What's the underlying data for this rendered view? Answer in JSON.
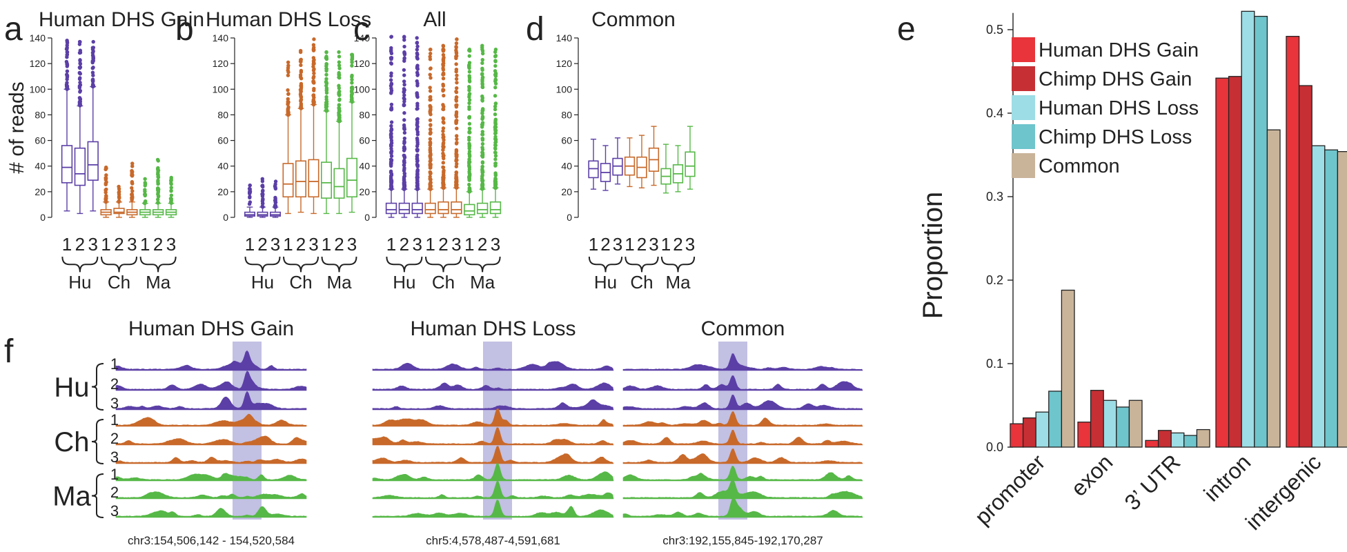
{
  "panels": {
    "a": {
      "letter": "a",
      "title": "Human DHS Gain"
    },
    "b": {
      "letter": "b",
      "title": "Human DHS Loss"
    },
    "c": {
      "letter": "c",
      "title": "All"
    },
    "d": {
      "letter": "d",
      "title": "Common"
    },
    "e": {
      "letter": "e"
    },
    "f": {
      "letter": "f"
    }
  },
  "colors": {
    "Hu": "#5b3fa6",
    "Ch": "#c8692a",
    "Ma": "#56b847",
    "highlight": "#8f8ccc"
  },
  "boxplot_common": {
    "ylabel": "# of reads",
    "yticks": [
      "0",
      "20",
      "40",
      "60",
      "80",
      "100",
      "120",
      "140"
    ],
    "replicates": [
      "1",
      "2",
      "3"
    ],
    "species": [
      "Hu",
      "Ch",
      "Ma"
    ]
  },
  "panel_f": {
    "species": [
      {
        "name": "Hu",
        "reps": [
          "1",
          "2",
          "3"
        ]
      },
      {
        "name": "Ch",
        "reps": [
          "1",
          "2",
          "3"
        ]
      },
      {
        "name": "Ma",
        "reps": [
          "1",
          "2",
          "3"
        ]
      }
    ],
    "regions": [
      {
        "title": "Human DHS Gain",
        "coords": "chr3:154,506,142 - 154,520,584"
      },
      {
        "title": "Human DHS Loss",
        "coords": "chr5:4,578,487-4,591,681"
      },
      {
        "title": "Common",
        "coords": "chr3:192,155,845-192,170,287"
      }
    ]
  },
  "chart_data": [
    {
      "type": "box",
      "panel": "a",
      "title": "Human DHS Gain",
      "ylabel": "# of reads",
      "ylim": [
        0,
        140
      ],
      "categories": [
        "1",
        "2",
        "3",
        "1",
        "2",
        "3",
        "1",
        "2",
        "3"
      ],
      "groups": [
        "Hu",
        "Ch",
        "Ma"
      ],
      "boxes": [
        {
          "group": "Hu",
          "rep": "1",
          "whisker_low": 5,
          "q1": 27,
          "median": 39,
          "q3": 56,
          "whisker_high": 100,
          "outlier_max": 138
        },
        {
          "group": "Hu",
          "rep": "2",
          "whisker_low": 3,
          "q1": 25,
          "median": 34,
          "q3": 54,
          "whisker_high": 87,
          "outlier_max": 137
        },
        {
          "group": "Hu",
          "rep": "3",
          "whisker_low": 5,
          "q1": 29,
          "median": 41,
          "q3": 59,
          "whisker_high": 102,
          "outlier_max": 137
        },
        {
          "group": "Ch",
          "rep": "1",
          "whisker_low": 0,
          "q1": 2,
          "median": 4,
          "q3": 6,
          "whisker_high": 12,
          "outlier_max": 39
        },
        {
          "group": "Ch",
          "rep": "2",
          "whisker_low": 0,
          "q1": 3,
          "median": 4,
          "q3": 7,
          "whisker_high": 12,
          "outlier_max": 24
        },
        {
          "group": "Ch",
          "rep": "3",
          "whisker_low": 0,
          "q1": 2,
          "median": 4,
          "q3": 6,
          "whisker_high": 12,
          "outlier_max": 42
        },
        {
          "group": "Ma",
          "rep": "1",
          "whisker_low": 0,
          "q1": 2,
          "median": 4,
          "q3": 6,
          "whisker_high": 11,
          "outlier_max": 30
        },
        {
          "group": "Ma",
          "rep": "2",
          "whisker_low": 0,
          "q1": 2,
          "median": 4,
          "q3": 6,
          "whisker_high": 11,
          "outlier_max": 45
        },
        {
          "group": "Ma",
          "rep": "3",
          "whisker_low": 0,
          "q1": 2,
          "median": 4,
          "q3": 6,
          "whisker_high": 11,
          "outlier_max": 31
        }
      ]
    },
    {
      "type": "box",
      "panel": "b",
      "title": "Human DHS Loss",
      "ylim": [
        0,
        140
      ],
      "categories": [
        "1",
        "2",
        "3",
        "1",
        "2",
        "3",
        "1",
        "2",
        "3"
      ],
      "groups": [
        "Hu",
        "Ch",
        "Ma"
      ],
      "boxes": [
        {
          "group": "Hu",
          "rep": "1",
          "whisker_low": 0,
          "q1": 1,
          "median": 2,
          "q3": 4,
          "whisker_high": 8,
          "outlier_max": 25
        },
        {
          "group": "Hu",
          "rep": "2",
          "whisker_low": 0,
          "q1": 1,
          "median": 2,
          "q3": 4,
          "whisker_high": 8,
          "outlier_max": 30
        },
        {
          "group": "Hu",
          "rep": "3",
          "whisker_low": 0,
          "q1": 1,
          "median": 2,
          "q3": 4,
          "whisker_high": 8,
          "outlier_max": 28
        },
        {
          "group": "Ch",
          "rep": "1",
          "whisker_low": 3,
          "q1": 16,
          "median": 26,
          "q3": 42,
          "whisker_high": 80,
          "outlier_max": 121
        },
        {
          "group": "Ch",
          "rep": "2",
          "whisker_low": 4,
          "q1": 16,
          "median": 28,
          "q3": 44,
          "whisker_high": 85,
          "outlier_max": 130
        },
        {
          "group": "Ch",
          "rep": "3",
          "whisker_low": 3,
          "q1": 16,
          "median": 28,
          "q3": 45,
          "whisker_high": 88,
          "outlier_max": 139
        },
        {
          "group": "Ma",
          "rep": "1",
          "whisker_low": 3,
          "q1": 15,
          "median": 27,
          "q3": 43,
          "whisker_high": 83,
          "outlier_max": 129
        },
        {
          "group": "Ma",
          "rep": "2",
          "whisker_low": 3,
          "q1": 15,
          "median": 24,
          "q3": 38,
          "whisker_high": 75,
          "outlier_max": 129
        },
        {
          "group": "Ma",
          "rep": "3",
          "whisker_low": 4,
          "q1": 16,
          "median": 29,
          "q3": 46,
          "whisker_high": 90,
          "outlier_max": 127
        }
      ]
    },
    {
      "type": "box",
      "panel": "c",
      "title": "All",
      "ylim": [
        0,
        140
      ],
      "categories": [
        "1",
        "2",
        "3",
        "1",
        "2",
        "3",
        "1",
        "2",
        "3"
      ],
      "groups": [
        "Hu",
        "Ch",
        "Ma"
      ],
      "boxes": [
        {
          "group": "Hu",
          "rep": "1",
          "whisker_low": 0,
          "q1": 3,
          "median": 6,
          "q3": 11,
          "whisker_high": 22,
          "outlier_max": 141
        },
        {
          "group": "Hu",
          "rep": "2",
          "whisker_low": 0,
          "q1": 3,
          "median": 6,
          "q3": 11,
          "whisker_high": 22,
          "outlier_max": 141
        },
        {
          "group": "Hu",
          "rep": "3",
          "whisker_low": 0,
          "q1": 3,
          "median": 6,
          "q3": 11,
          "whisker_high": 22,
          "outlier_max": 140
        },
        {
          "group": "Ch",
          "rep": "1",
          "whisker_low": 0,
          "q1": 3,
          "median": 6,
          "q3": 11,
          "whisker_high": 22,
          "outlier_max": 131
        },
        {
          "group": "Ch",
          "rep": "2",
          "whisker_low": 0,
          "q1": 3,
          "median": 6,
          "q3": 12,
          "whisker_high": 23,
          "outlier_max": 134
        },
        {
          "group": "Ch",
          "rep": "3",
          "whisker_low": 0,
          "q1": 3,
          "median": 6,
          "q3": 12,
          "whisker_high": 23,
          "outlier_max": 139
        },
        {
          "group": "Ma",
          "rep": "1",
          "whisker_low": 0,
          "q1": 2,
          "median": 5,
          "q3": 10,
          "whisker_high": 20,
          "outlier_max": 131
        },
        {
          "group": "Ma",
          "rep": "2",
          "whisker_low": 0,
          "q1": 3,
          "median": 6,
          "q3": 11,
          "whisker_high": 22,
          "outlier_max": 134
        },
        {
          "group": "Ma",
          "rep": "3",
          "whisker_low": 0,
          "q1": 3,
          "median": 6,
          "q3": 12,
          "whisker_high": 23,
          "outlier_max": 131
        }
      ]
    },
    {
      "type": "box",
      "panel": "d",
      "title": "Common",
      "ylim": [
        0,
        140
      ],
      "categories": [
        "1",
        "2",
        "3",
        "1",
        "2",
        "3",
        "1",
        "2",
        "3"
      ],
      "groups": [
        "Hu",
        "Ch",
        "Ma"
      ],
      "boxes": [
        {
          "group": "Hu",
          "rep": "1",
          "whisker_low": 22,
          "q1": 31,
          "median": 38,
          "q3": 44,
          "whisker_high": 61,
          "outlier_max": 61
        },
        {
          "group": "Hu",
          "rep": "2",
          "whisker_low": 21,
          "q1": 28,
          "median": 35,
          "q3": 42,
          "whisker_high": 56,
          "outlier_max": 56
        },
        {
          "group": "Hu",
          "rep": "3",
          "whisker_low": 26,
          "q1": 33,
          "median": 40,
          "q3": 46,
          "whisker_high": 62,
          "outlier_max": 62
        },
        {
          "group": "Ch",
          "rep": "1",
          "whisker_low": 24,
          "q1": 33,
          "median": 40,
          "q3": 47,
          "whisker_high": 62,
          "outlier_max": 62
        },
        {
          "group": "Ch",
          "rep": "2",
          "whisker_low": 23,
          "q1": 31,
          "median": 39,
          "q3": 47,
          "whisker_high": 64,
          "outlier_max": 64
        },
        {
          "group": "Ch",
          "rep": "3",
          "whisker_low": 25,
          "q1": 36,
          "median": 45,
          "q3": 54,
          "whisker_high": 71,
          "outlier_max": 71
        },
        {
          "group": "Ma",
          "rep": "1",
          "whisker_low": 19,
          "q1": 26,
          "median": 32,
          "q3": 38,
          "whisker_high": 57,
          "outlier_max": 57
        },
        {
          "group": "Ma",
          "rep": "2",
          "whisker_low": 20,
          "q1": 27,
          "median": 34,
          "q3": 41,
          "whisker_high": 56,
          "outlier_max": 56
        },
        {
          "group": "Ma",
          "rep": "3",
          "whisker_low": 22,
          "q1": 32,
          "median": 40,
          "q3": 51,
          "whisker_high": 71,
          "outlier_max": 71
        }
      ]
    },
    {
      "type": "bar",
      "panel": "e",
      "ylabel": "Proportion",
      "ylim": [
        0,
        0.52
      ],
      "yticks": [
        "0.0",
        "0.1",
        "0.2",
        "0.3",
        "0.4",
        "0.5"
      ],
      "categories": [
        "promoter",
        "exon",
        "3’ UTR",
        "intron",
        "intergenic"
      ],
      "legend_position": "top-left",
      "series": [
        {
          "name": "Human DHS Gain",
          "color": "#e8343a",
          "values": [
            0.028,
            0.03,
            0.008,
            0.442,
            0.492
          ]
        },
        {
          "name": "Chimp DHS Gain",
          "color": "#c62f34",
          "values": [
            0.035,
            0.068,
            0.02,
            0.444,
            0.433
          ]
        },
        {
          "name": "Human DHS Loss",
          "color": "#9ddde5",
          "values": [
            0.042,
            0.056,
            0.017,
            0.522,
            0.361
          ]
        },
        {
          "name": "Chimp DHS Loss",
          "color": "#6ec5cc",
          "values": [
            0.067,
            0.048,
            0.014,
            0.516,
            0.356
          ]
        },
        {
          "name": "Common",
          "color": "#c9b49a",
          "values": [
            0.188,
            0.056,
            0.021,
            0.38,
            0.354
          ]
        }
      ]
    }
  ]
}
